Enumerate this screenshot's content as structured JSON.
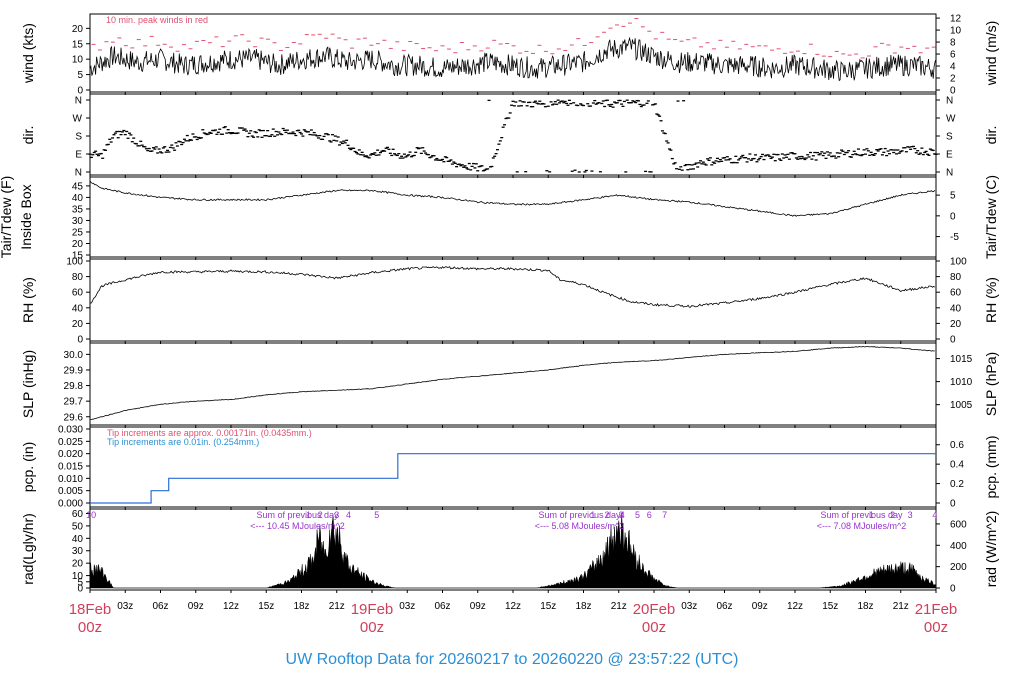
{
  "title": "UW Rooftop Data for 20260217  to  20260220 @ 23:57:22  (UTC)",
  "colors": {
    "title": "#2a8fd6",
    "date": "#d0405a",
    "peak": "#e05070",
    "tip1": "#e05070",
    "tip2": "#2a8fd6",
    "purple": "#9933cc",
    "line": "#000000",
    "pcp": "#2a6fd6"
  },
  "x_axis": {
    "hour_labels": [
      "03z",
      "06z",
      "09z",
      "12z",
      "15z",
      "18z",
      "21z",
      "03z",
      "06z",
      "09z",
      "12z",
      "15z",
      "18z",
      "21z",
      "03z",
      "06z",
      "09z",
      "12z",
      "15z",
      "18z",
      "21z"
    ],
    "hour_positions": [
      3,
      6,
      9,
      12,
      15,
      18,
      21,
      27,
      30,
      33,
      36,
      39,
      42,
      45,
      51,
      54,
      57,
      60,
      63,
      66,
      69
    ],
    "day_labels": [
      {
        "date": "18Feb",
        "time": "00z",
        "hour": 0
      },
      {
        "date": "19Feb",
        "time": "00z",
        "hour": 24
      },
      {
        "date": "20Feb",
        "time": "00z",
        "hour": 48
      },
      {
        "date": "21Feb",
        "time": "00z",
        "hour": 72
      }
    ],
    "range_hours": [
      0,
      72
    ]
  },
  "panels": {
    "wind": {
      "ylabel_left": "wind (kts)",
      "ylabel_right": "wind (m/s)",
      "left_ticks": [
        "0",
        "5",
        "10",
        "15",
        "20"
      ],
      "right_ticks": [
        "0",
        "2",
        "4",
        "6",
        "8",
        "10",
        "12"
      ],
      "note": "10 min. peak winds in red"
    },
    "dir": {
      "ylabel_left": "dir.",
      "ylabel_right": "dir.",
      "ticks": [
        "N",
        "E",
        "S",
        "W",
        "N"
      ]
    },
    "temp": {
      "ylabel_left_1": "Tair/Tdew (F)",
      "ylabel_left_2": "Inside Box",
      "ylabel_right": "Tair/Tdew (C)",
      "left_ticks": [
        "15",
        "20",
        "25",
        "30",
        "35",
        "40",
        "45"
      ],
      "right_ticks": [
        "-5",
        "0",
        "5"
      ]
    },
    "rh": {
      "ylabel_left": "RH (%)",
      "ylabel_right": "RH (%)",
      "ticks": [
        "0",
        "20",
        "40",
        "60",
        "80",
        "100"
      ]
    },
    "slp": {
      "ylabel_left": "SLP (inHg)",
      "ylabel_right": "SLP (hPa)",
      "left_ticks": [
        "29.6",
        "29.7",
        "29.8",
        "29.9",
        "30.0"
      ],
      "right_ticks": [
        "1005",
        "1010",
        "1015"
      ]
    },
    "pcp": {
      "ylabel_left": "pcp. (in)",
      "ylabel_right": "pcp. (mm)",
      "left_ticks": [
        "0.000",
        "0.005",
        "0.010",
        "0.015",
        "0.020",
        "0.025",
        "0.030"
      ],
      "right_ticks": [
        "0",
        "0.2",
        "0.4",
        "0.6"
      ],
      "note1": "Tip increments are approx. 0.00171in. (0.0435mm.)",
      "note2": "Tip increments are 0.01in. (0.254mm.)"
    },
    "rad": {
      "ylabel_left": "rad(Lgly/hr)",
      "ylabel_right": "rad (W/m^2)",
      "left_ticks": [
        "0",
        "5",
        "10",
        "20",
        "30",
        "40",
        "50",
        "60"
      ],
      "right_ticks": [
        "0",
        "200",
        "400",
        "600"
      ],
      "sums": [
        {
          "title": "Sum of previous day",
          "value": "<--- 10.45 MJoules/m^2",
          "hour": 10
        },
        {
          "title": "Sum of previous day",
          "value": "<--- 5.08 MJoules/m^2",
          "hour": 34
        },
        {
          "title": "Sum of previous day",
          "value": "<--- 7.08 MJoules/m^2",
          "hour": 58
        }
      ],
      "markers": [
        {
          "t": "10",
          "hour": 0.1
        },
        {
          "t": "1",
          "hour": 18.6
        },
        {
          "t": "2",
          "hour": 19.6
        },
        {
          "t": "3",
          "hour": 21.0
        },
        {
          "t": "4",
          "hour": 22.0
        },
        {
          "t": "5",
          "hour": 24.4
        },
        {
          "t": "1",
          "hour": 42.8
        },
        {
          "t": "2",
          "hour": 44.0
        },
        {
          "t": "3",
          "hour": 45.2
        },
        {
          "t": "4",
          "hour": 45.3
        },
        {
          "t": "5",
          "hour": 46.6
        },
        {
          "t": "6",
          "hour": 47.6
        },
        {
          "t": "7",
          "hour": 48.9
        },
        {
          "t": "1",
          "hour": 66.5
        },
        {
          "t": "2",
          "hour": 68.3
        },
        {
          "t": "3",
          "hour": 69.8
        },
        {
          "t": "4",
          "hour": 71.9
        }
      ]
    }
  },
  "chart_data": {
    "type": "line",
    "x_unit": "hours since 18Feb 00z",
    "series": [
      {
        "panel": "wind",
        "name": "wind",
        "unit": "kts",
        "x": [
          0,
          2,
          4,
          6,
          8,
          10,
          12,
          14,
          16,
          18,
          20,
          22,
          24,
          26,
          28,
          30,
          32,
          34,
          36,
          38,
          40,
          42,
          44,
          46,
          48,
          50,
          52,
          54,
          56,
          58,
          60,
          62,
          64,
          66,
          68,
          70,
          72
        ],
        "values": [
          7,
          11,
          9,
          10,
          8,
          9,
          10,
          10,
          8,
          10,
          11,
          9,
          10,
          8,
          8,
          7,
          8,
          9,
          8,
          7,
          8,
          9,
          13,
          14,
          11,
          9,
          9,
          8,
          8,
          7,
          8,
          7,
          6,
          7,
          8,
          8,
          7
        ]
      },
      {
        "panel": "wind",
        "name": "10 min. peak winds in red",
        "unit": "kts",
        "x": [
          0,
          2,
          4,
          6,
          8,
          10,
          12,
          14,
          16,
          18,
          20,
          22,
          24,
          26,
          28,
          30,
          32,
          34,
          36,
          38,
          40,
          42,
          44,
          46,
          48,
          50,
          52,
          54,
          56,
          58,
          60,
          62,
          64,
          66,
          68,
          70,
          72
        ],
        "values": [
          13,
          17,
          15,
          16,
          14,
          15,
          16,
          16,
          14,
          16,
          18,
          15,
          16,
          14,
          14,
          13,
          14,
          15,
          14,
          13,
          14,
          15,
          21,
          23,
          18,
          15,
          15,
          14,
          14,
          13,
          14,
          13,
          11,
          12,
          14,
          14,
          12
        ]
      },
      {
        "panel": "temp",
        "name": "Tair",
        "unit": "F",
        "x": [
          0,
          1,
          3,
          6,
          9,
          12,
          15,
          18,
          21,
          24,
          27,
          30,
          33,
          36,
          39,
          42,
          45,
          48,
          51,
          54,
          57,
          60,
          63,
          66,
          69,
          72
        ],
        "values": [
          47,
          44,
          42,
          40,
          39,
          39,
          39,
          41,
          43,
          43,
          41,
          40,
          38,
          37,
          37,
          39,
          41,
          39,
          38,
          36,
          34,
          32,
          33,
          37,
          41,
          43
        ]
      },
      {
        "panel": "rh",
        "name": "RH",
        "unit": "%",
        "x": [
          0,
          1,
          3,
          6,
          9,
          12,
          15,
          18,
          21,
          24,
          27,
          30,
          33,
          36,
          39,
          40,
          42,
          44,
          46,
          48,
          51,
          54,
          57,
          60,
          63,
          66,
          69,
          72
        ],
        "values": [
          45,
          68,
          76,
          86,
          86,
          87,
          86,
          83,
          78,
          85,
          90,
          92,
          90,
          90,
          88,
          76,
          70,
          58,
          48,
          44,
          42,
          46,
          52,
          60,
          70,
          78,
          62,
          68
        ]
      },
      {
        "panel": "slp",
        "name": "SLP",
        "unit": "inHg",
        "x": [
          0,
          3,
          6,
          9,
          12,
          15,
          18,
          21,
          24,
          27,
          30,
          33,
          36,
          39,
          42,
          45,
          48,
          51,
          54,
          57,
          60,
          63,
          66,
          69,
          72
        ],
        "values": [
          29.58,
          29.64,
          29.68,
          29.7,
          29.71,
          29.74,
          29.76,
          29.77,
          29.78,
          29.81,
          29.84,
          29.86,
          29.88,
          29.9,
          29.93,
          29.95,
          29.96,
          29.98,
          30.0,
          30.01,
          30.02,
          30.04,
          30.05,
          30.04,
          30.02
        ]
      },
      {
        "panel": "pcp",
        "name": "pcp",
        "unit": "in",
        "x": [
          0,
          5.2,
          5.2,
          6.7,
          6.7,
          26.2,
          26.2,
          72
        ],
        "values": [
          0,
          0,
          0.005,
          0.005,
          0.01,
          0.01,
          0.02,
          0.02
        ]
      },
      {
        "panel": "rad",
        "name": "rad",
        "unit": "Lgly/hr",
        "x": [
          0,
          1,
          2,
          15,
          16,
          17,
          18,
          19,
          19.5,
          20,
          20.5,
          21,
          21.5,
          22,
          23,
          24,
          25,
          26,
          38,
          40,
          42,
          43,
          44,
          44.5,
          45,
          45.5,
          46,
          47,
          48,
          49,
          50,
          62,
          64,
          65,
          66,
          67,
          68,
          69,
          70,
          71,
          72
        ],
        "values": [
          18,
          15,
          0,
          0,
          3,
          6,
          15,
          25,
          45,
          30,
          55,
          50,
          35,
          20,
          12,
          6,
          2,
          0,
          0,
          4,
          10,
          20,
          35,
          45,
          55,
          50,
          35,
          18,
          8,
          2,
          0,
          0,
          2,
          6,
          10,
          14,
          16,
          18,
          16,
          8,
          3
        ]
      }
    ],
    "dir_points": {
      "unit": "deg",
      "x": [
        0,
        1,
        2,
        3,
        4,
        5,
        6,
        7,
        8,
        10,
        12,
        14,
        16,
        18,
        20,
        22,
        23,
        24,
        25,
        26,
        27,
        28,
        30,
        32,
        34,
        36,
        38,
        40,
        42,
        44,
        46,
        48,
        50,
        52,
        54,
        56,
        58,
        60,
        62,
        64,
        66,
        68,
        70,
        72
      ],
      "values": [
        90,
        80,
        180,
        200,
        150,
        100,
        110,
        120,
        160,
        200,
        210,
        190,
        200,
        200,
        180,
        140,
        90,
        85,
        110,
        90,
        80,
        110,
        60,
        30,
        10,
        350,
        340,
        355,
        350,
        340,
        345,
        350,
        0,
        50,
        60,
        70,
        70,
        80,
        80,
        90,
        100,
        100,
        110,
        100
      ]
    },
    "axes": {
      "wind": {
        "ylim": [
          0,
          24
        ]
      },
      "temp": {
        "ylim": [
          15,
          48
        ]
      },
      "rh": {
        "ylim": [
          0,
          100
        ]
      },
      "slp": {
        "ylim": [
          29.56,
          30.06
        ]
      },
      "pcp": {
        "ylim": [
          0,
          0.03
        ]
      },
      "rad": {
        "ylim": [
          0,
          62
        ]
      }
    }
  }
}
